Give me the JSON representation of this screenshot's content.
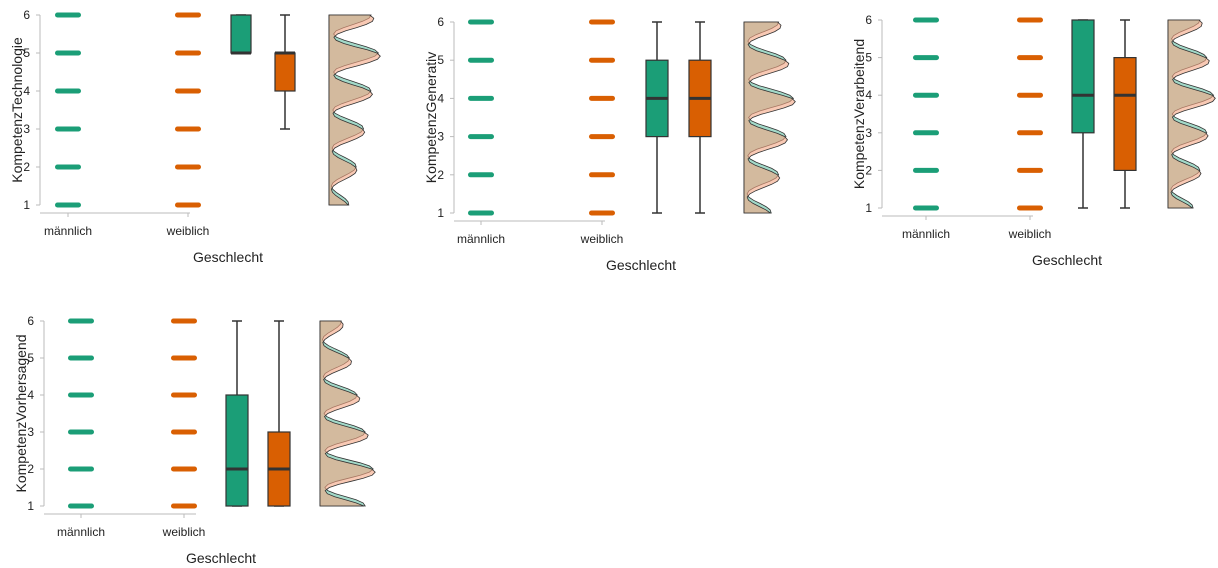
{
  "colors": {
    "maennlich": "#1b9e77",
    "weiblich": "#d95f02",
    "maennlich_density": "#66c2a5",
    "weiblich_density": "#f4a582",
    "axis": "#bbbbbb",
    "median": "#333333"
  },
  "chart_data": [
    {
      "type": "raincloud",
      "title": "",
      "xlabel": "Geschlecht",
      "ylabel": "KompetenzTechnologie",
      "ylim": [
        1,
        6
      ],
      "yticks": [
        "1",
        "2",
        "3",
        "4",
        "5",
        "6"
      ],
      "categories": [
        "männlich",
        "weiblich"
      ],
      "series": [
        {
          "name": "männlich",
          "points": [
            1,
            2,
            3,
            4,
            5,
            6
          ],
          "box": {
            "min": 5,
            "q1": 5,
            "median": 5,
            "q3": 6,
            "max": 6
          }
        },
        {
          "name": "weiblich",
          "points": [
            1,
            2,
            3,
            4,
            5,
            6
          ],
          "box": {
            "min": 3,
            "q1": 4,
            "median": 5,
            "q3": 5,
            "max": 6
          }
        }
      ]
    },
    {
      "type": "raincloud",
      "title": "",
      "xlabel": "Geschlecht",
      "ylabel": "KompetenzGenerativ",
      "ylim": [
        1,
        6
      ],
      "yticks": [
        "1",
        "2",
        "3",
        "4",
        "5",
        "6"
      ],
      "categories": [
        "männlich",
        "weiblich"
      ],
      "series": [
        {
          "name": "männlich",
          "points": [
            1,
            2,
            3,
            4,
            5,
            6
          ],
          "box": {
            "min": 1,
            "q1": 3,
            "median": 4,
            "q3": 5,
            "max": 6
          }
        },
        {
          "name": "weiblich",
          "points": [
            1,
            2,
            3,
            4,
            5,
            6
          ],
          "box": {
            "min": 1,
            "q1": 3,
            "median": 4,
            "q3": 5,
            "max": 6
          }
        }
      ]
    },
    {
      "type": "raincloud",
      "title": "",
      "xlabel": "Geschlecht",
      "ylabel": "KompetenzVerarbeitend",
      "ylim": [
        1,
        6
      ],
      "yticks": [
        "1",
        "2",
        "3",
        "4",
        "5",
        "6"
      ],
      "categories": [
        "männlich",
        "weiblich"
      ],
      "series": [
        {
          "name": "männlich",
          "points": [
            1,
            2,
            3,
            4,
            5,
            6
          ],
          "box": {
            "min": 1,
            "q1": 3,
            "median": 4,
            "q3": 6,
            "max": 6
          }
        },
        {
          "name": "weiblich",
          "points": [
            1,
            2,
            3,
            4,
            5,
            6
          ],
          "box": {
            "min": 1,
            "q1": 2,
            "median": 4,
            "q3": 5,
            "max": 6
          }
        }
      ]
    },
    {
      "type": "raincloud",
      "title": "",
      "xlabel": "Geschlecht",
      "ylabel": "KompetenzVorhersagend",
      "ylim": [
        1,
        6
      ],
      "yticks": [
        "1",
        "2",
        "3",
        "4",
        "5",
        "6"
      ],
      "categories": [
        "männlich",
        "weiblich"
      ],
      "series": [
        {
          "name": "männlich",
          "points": [
            1,
            2,
            3,
            4,
            5,
            6
          ],
          "box": {
            "min": 1,
            "q1": 1,
            "median": 2,
            "q3": 4,
            "max": 6
          }
        },
        {
          "name": "weiblich",
          "points": [
            1,
            2,
            3,
            4,
            5,
            6
          ],
          "box": {
            "min": 1,
            "q1": 1,
            "median": 2,
            "q3": 3,
            "max": 6
          }
        }
      ]
    }
  ]
}
